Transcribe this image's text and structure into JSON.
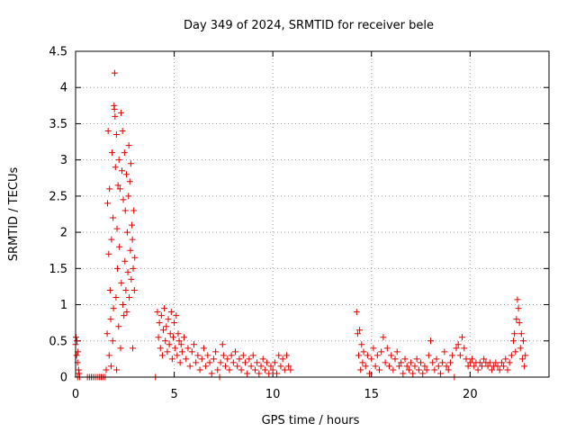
{
  "chart_data": {
    "type": "scatter",
    "title": "Day 349 of 2024, SRMTID for receiver bele",
    "xlabel": "GPS time / hours",
    "ylabel": "SRMTID / TECUs",
    "xlim": [
      0,
      24
    ],
    "ylim": [
      0,
      4.5
    ],
    "xticks": [
      0,
      5,
      10,
      15,
      20
    ],
    "xtick_labels": [
      "0",
      "5",
      "10",
      "15",
      "20"
    ],
    "yticks": [
      0,
      0.5,
      1,
      1.5,
      2,
      2.5,
      3,
      3.5,
      4,
      4.5
    ],
    "ytick_labels": [
      "0",
      "0.5",
      "1",
      "1.5",
      "2",
      "2.5",
      "3",
      "3.5",
      "4",
      "4.5"
    ],
    "grid": true,
    "marker": "+",
    "color": "#e00000",
    "series": [
      {
        "name": "SRMTID",
        "points": [
          [
            0.0,
            0.45
          ],
          [
            0.02,
            0.55
          ],
          [
            0.05,
            0.3
          ],
          [
            0.07,
            0.5
          ],
          [
            0.1,
            0.2
          ],
          [
            0.12,
            0.35
          ],
          [
            0.15,
            0.1
          ],
          [
            0.18,
            0.05
          ],
          [
            0.2,
            0.0
          ],
          [
            0.1,
            0.0
          ],
          [
            0.6,
            0.0
          ],
          [
            0.7,
            0.0
          ],
          [
            0.8,
            0.0
          ],
          [
            0.9,
            0.0
          ],
          [
            1.0,
            0.0
          ],
          [
            1.1,
            0.0
          ],
          [
            1.2,
            0.0
          ],
          [
            1.3,
            0.0
          ],
          [
            1.4,
            0.0
          ],
          [
            1.5,
            0.0
          ],
          [
            1.55,
            0.1
          ],
          [
            1.6,
            0.6
          ],
          [
            1.62,
            2.4
          ],
          [
            1.65,
            3.4
          ],
          [
            1.68,
            1.7
          ],
          [
            1.7,
            0.3
          ],
          [
            1.72,
            2.6
          ],
          [
            1.75,
            1.2
          ],
          [
            1.78,
            0.8
          ],
          [
            1.8,
            0.15
          ],
          [
            1.82,
            1.9
          ],
          [
            1.85,
            3.1
          ],
          [
            1.88,
            0.5
          ],
          [
            1.9,
            2.2
          ],
          [
            1.92,
            0.95
          ],
          [
            1.95,
            3.75
          ],
          [
            1.97,
            3.7
          ],
          [
            1.98,
            4.2
          ],
          [
            2.0,
            3.6
          ],
          [
            2.02,
            2.9
          ],
          [
            2.05,
            1.1
          ],
          [
            2.07,
            3.35
          ],
          [
            2.08,
            0.1
          ],
          [
            2.1,
            2.05
          ],
          [
            2.12,
            1.5
          ],
          [
            2.15,
            2.65
          ],
          [
            2.18,
            0.7
          ],
          [
            2.2,
            3.0
          ],
          [
            2.22,
            1.8
          ],
          [
            2.25,
            2.6
          ],
          [
            2.28,
            0.4
          ],
          [
            2.3,
            3.65
          ],
          [
            2.32,
            1.3
          ],
          [
            2.35,
            2.85
          ],
          [
            2.38,
            3.4
          ],
          [
            2.4,
            1.0
          ],
          [
            2.42,
            2.45
          ],
          [
            2.45,
            0.85
          ],
          [
            2.48,
            3.1
          ],
          [
            2.5,
            1.6
          ],
          [
            2.52,
            2.3
          ],
          [
            2.55,
            1.2
          ],
          [
            2.58,
            2.8
          ],
          [
            2.6,
            0.9
          ],
          [
            2.62,
            2.0
          ],
          [
            2.65,
            1.45
          ],
          [
            2.68,
            2.5
          ],
          [
            2.7,
            3.2
          ],
          [
            2.72,
            1.1
          ],
          [
            2.75,
            2.7
          ],
          [
            2.78,
            1.75
          ],
          [
            2.8,
            2.95
          ],
          [
            2.82,
            1.35
          ],
          [
            2.85,
            2.1
          ],
          [
            2.88,
            1.9
          ],
          [
            2.9,
            0.4
          ],
          [
            2.92,
            1.5
          ],
          [
            2.95,
            2.3
          ],
          [
            2.98,
            1.2
          ],
          [
            3.0,
            1.65
          ],
          [
            4.05,
            0.0
          ],
          [
            4.15,
            0.9
          ],
          [
            4.2,
            0.55
          ],
          [
            4.25,
            0.75
          ],
          [
            4.3,
            0.4
          ],
          [
            4.35,
            0.85
          ],
          [
            4.4,
            0.3
          ],
          [
            4.45,
            0.65
          ],
          [
            4.5,
            0.95
          ],
          [
            4.55,
            0.5
          ],
          [
            4.6,
            0.7
          ],
          [
            4.65,
            0.35
          ],
          [
            4.7,
            0.8
          ],
          [
            4.75,
            0.45
          ],
          [
            4.8,
            0.6
          ],
          [
            4.85,
            0.9
          ],
          [
            4.9,
            0.25
          ],
          [
            4.95,
            0.55
          ],
          [
            5.0,
            0.75
          ],
          [
            5.05,
            0.4
          ],
          [
            5.1,
            0.85
          ],
          [
            5.15,
            0.3
          ],
          [
            5.2,
            0.6
          ],
          [
            5.25,
            0.5
          ],
          [
            5.3,
            0.2
          ],
          [
            5.35,
            0.45
          ],
          [
            5.4,
            0.35
          ],
          [
            5.5,
            0.55
          ],
          [
            5.6,
            0.25
          ],
          [
            5.7,
            0.4
          ],
          [
            5.8,
            0.15
          ],
          [
            5.9,
            0.35
          ],
          [
            6.0,
            0.45
          ],
          [
            6.1,
            0.2
          ],
          [
            6.2,
            0.3
          ],
          [
            6.3,
            0.1
          ],
          [
            6.4,
            0.25
          ],
          [
            6.5,
            0.4
          ],
          [
            6.6,
            0.15
          ],
          [
            6.7,
            0.3
          ],
          [
            6.8,
            0.2
          ],
          [
            6.9,
            0.05
          ],
          [
            7.0,
            0.25
          ],
          [
            7.1,
            0.35
          ],
          [
            7.2,
            0.1
          ],
          [
            7.3,
            0.0
          ],
          [
            7.35,
            0.2
          ],
          [
            7.45,
            0.45
          ],
          [
            7.5,
            0.3
          ],
          [
            7.6,
            0.15
          ],
          [
            7.7,
            0.25
          ],
          [
            7.8,
            0.1
          ],
          [
            7.9,
            0.3
          ],
          [
            8.0,
            0.2
          ],
          [
            8.1,
            0.35
          ],
          [
            8.2,
            0.15
          ],
          [
            8.3,
            0.25
          ],
          [
            8.4,
            0.1
          ],
          [
            8.5,
            0.3
          ],
          [
            8.6,
            0.2
          ],
          [
            8.7,
            0.05
          ],
          [
            8.8,
            0.25
          ],
          [
            8.9,
            0.15
          ],
          [
            9.0,
            0.3
          ],
          [
            9.1,
            0.1
          ],
          [
            9.2,
            0.2
          ],
          [
            9.3,
            0.05
          ],
          [
            9.4,
            0.15
          ],
          [
            9.5,
            0.25
          ],
          [
            9.6,
            0.1
          ],
          [
            9.7,
            0.2
          ],
          [
            9.8,
            0.05
          ],
          [
            9.9,
            0.15
          ],
          [
            10.0,
            0.1
          ],
          [
            10.1,
            0.2
          ],
          [
            10.2,
            0.05
          ],
          [
            10.3,
            0.3
          ],
          [
            10.4,
            0.15
          ],
          [
            10.5,
            0.25
          ],
          [
            10.6,
            0.1
          ],
          [
            10.7,
            0.3
          ],
          [
            10.8,
            0.15
          ],
          [
            10.9,
            0.1
          ],
          [
            14.25,
            0.9
          ],
          [
            14.3,
            0.6
          ],
          [
            14.35,
            0.3
          ],
          [
            14.4,
            0.65
          ],
          [
            14.45,
            0.1
          ],
          [
            14.5,
            0.45
          ],
          [
            14.55,
            0.2
          ],
          [
            14.6,
            0.35
          ],
          [
            14.7,
            0.15
          ],
          [
            14.8,
            0.3
          ],
          [
            14.9,
            0.05
          ],
          [
            15.0,
            0.25
          ],
          [
            15.1,
            0.4
          ],
          [
            15.2,
            0.15
          ],
          [
            15.3,
            0.3
          ],
          [
            15.4,
            0.1
          ],
          [
            15.5,
            0.35
          ],
          [
            15.6,
            0.55
          ],
          [
            15.7,
            0.2
          ],
          [
            15.8,
            0.4
          ],
          [
            15.9,
            0.15
          ],
          [
            16.0,
            0.3
          ],
          [
            16.1,
            0.1
          ],
          [
            16.2,
            0.25
          ],
          [
            16.3,
            0.35
          ],
          [
            16.4,
            0.15
          ],
          [
            16.5,
            0.2
          ],
          [
            16.6,
            0.05
          ],
          [
            16.7,
            0.25
          ],
          [
            16.8,
            0.15
          ],
          [
            16.9,
            0.1
          ],
          [
            17.0,
            0.2
          ],
          [
            17.1,
            0.05
          ],
          [
            17.2,
            0.15
          ],
          [
            17.3,
            0.25
          ],
          [
            17.4,
            0.1
          ],
          [
            17.5,
            0.2
          ],
          [
            17.6,
            0.05
          ],
          [
            17.7,
            0.15
          ],
          [
            17.8,
            0.1
          ],
          [
            17.9,
            0.3
          ],
          [
            18.0,
            0.5
          ],
          [
            18.1,
            0.2
          ],
          [
            18.2,
            0.1
          ],
          [
            18.3,
            0.25
          ],
          [
            18.4,
            0.15
          ],
          [
            18.5,
            0.05
          ],
          [
            18.6,
            0.2
          ],
          [
            18.7,
            0.35
          ],
          [
            18.8,
            0.15
          ],
          [
            18.9,
            0.1
          ],
          [
            19.0,
            0.2
          ],
          [
            19.1,
            0.3
          ],
          [
            19.2,
            0.0
          ],
          [
            19.3,
            0.4
          ],
          [
            19.4,
            0.45
          ],
          [
            19.5,
            0.3
          ],
          [
            19.6,
            0.55
          ],
          [
            19.7,
            0.4
          ],
          [
            19.8,
            0.25
          ],
          [
            19.9,
            0.15
          ],
          [
            20.0,
            0.2
          ],
          [
            20.1,
            0.25
          ],
          [
            20.2,
            0.15
          ],
          [
            20.3,
            0.2
          ],
          [
            20.4,
            0.1
          ],
          [
            20.5,
            0.2
          ],
          [
            20.6,
            0.15
          ],
          [
            20.7,
            0.25
          ],
          [
            20.8,
            0.2
          ],
          [
            20.9,
            0.15
          ],
          [
            21.0,
            0.2
          ],
          [
            21.1,
            0.1
          ],
          [
            21.2,
            0.15
          ],
          [
            21.3,
            0.2
          ],
          [
            21.4,
            0.15
          ],
          [
            21.5,
            0.1
          ],
          [
            21.6,
            0.2
          ],
          [
            21.7,
            0.15
          ],
          [
            21.8,
            0.25
          ],
          [
            21.9,
            0.1
          ],
          [
            22.0,
            0.2
          ],
          [
            22.1,
            0.3
          ],
          [
            22.2,
            0.5
          ],
          [
            22.25,
            0.6
          ],
          [
            22.3,
            0.35
          ],
          [
            22.35,
            0.8
          ],
          [
            22.4,
            1.07
          ],
          [
            22.45,
            0.95
          ],
          [
            22.5,
            0.75
          ],
          [
            22.55,
            0.4
          ],
          [
            22.6,
            0.6
          ],
          [
            22.65,
            0.25
          ],
          [
            22.7,
            0.5
          ],
          [
            22.75,
            0.15
          ],
          [
            22.8,
            0.3
          ]
        ]
      }
    ]
  }
}
